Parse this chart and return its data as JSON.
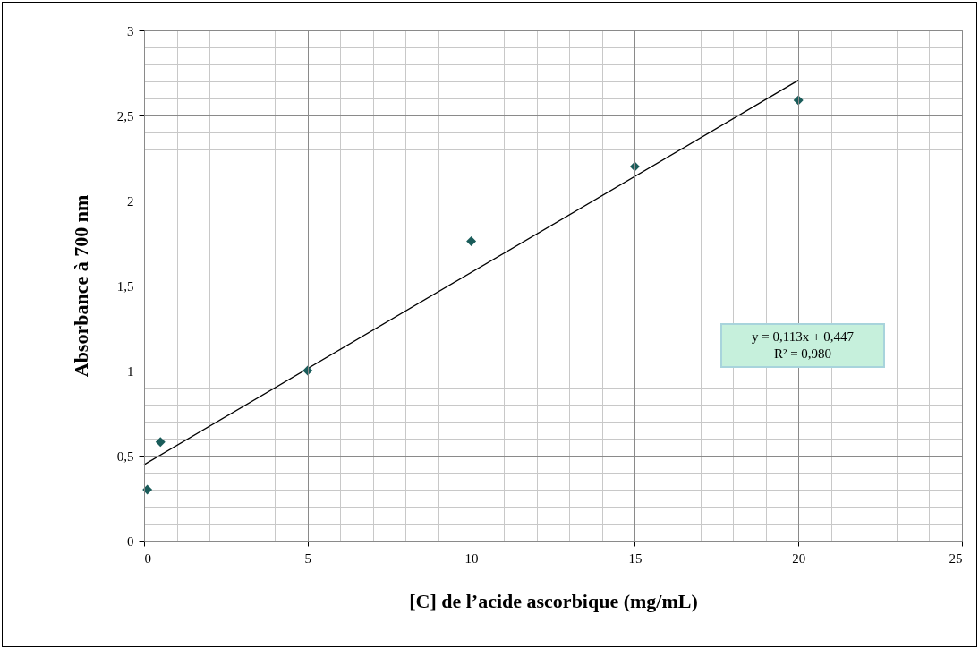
{
  "chart_data": {
    "type": "scatter",
    "xlabel": "[C] de l’acide ascorbique (mg/mL)",
    "ylabel": "Absorbance à 700 nm",
    "series": [
      {
        "type": "scatter",
        "color": "#1a5c5a",
        "marker": "diamond",
        "x": [
          0.1,
          0.5,
          5,
          10,
          15,
          20
        ],
        "values": [
          0.3,
          0.58,
          1.0,
          1.76,
          2.2,
          2.59
        ]
      },
      {
        "type": "line",
        "color": "#000000",
        "marker": "none",
        "x": [
          0,
          20
        ],
        "values": [
          0.447,
          2.707
        ]
      }
    ],
    "xlim": [
      0,
      25
    ],
    "xticks": [
      0,
      5,
      10,
      15,
      20,
      25
    ],
    "ylim": [
      0,
      3
    ],
    "yticks": [
      0,
      {
        "value": 0.5,
        "label": "0,5"
      },
      1,
      {
        "value": 1.5,
        "label": "1,5"
      },
      2,
      {
        "value": 2.5,
        "label": "2,5"
      },
      3
    ],
    "grid": true,
    "annotations": [
      "y = 0,113x + 0,447",
      "R² = 0,980"
    ]
  }
}
